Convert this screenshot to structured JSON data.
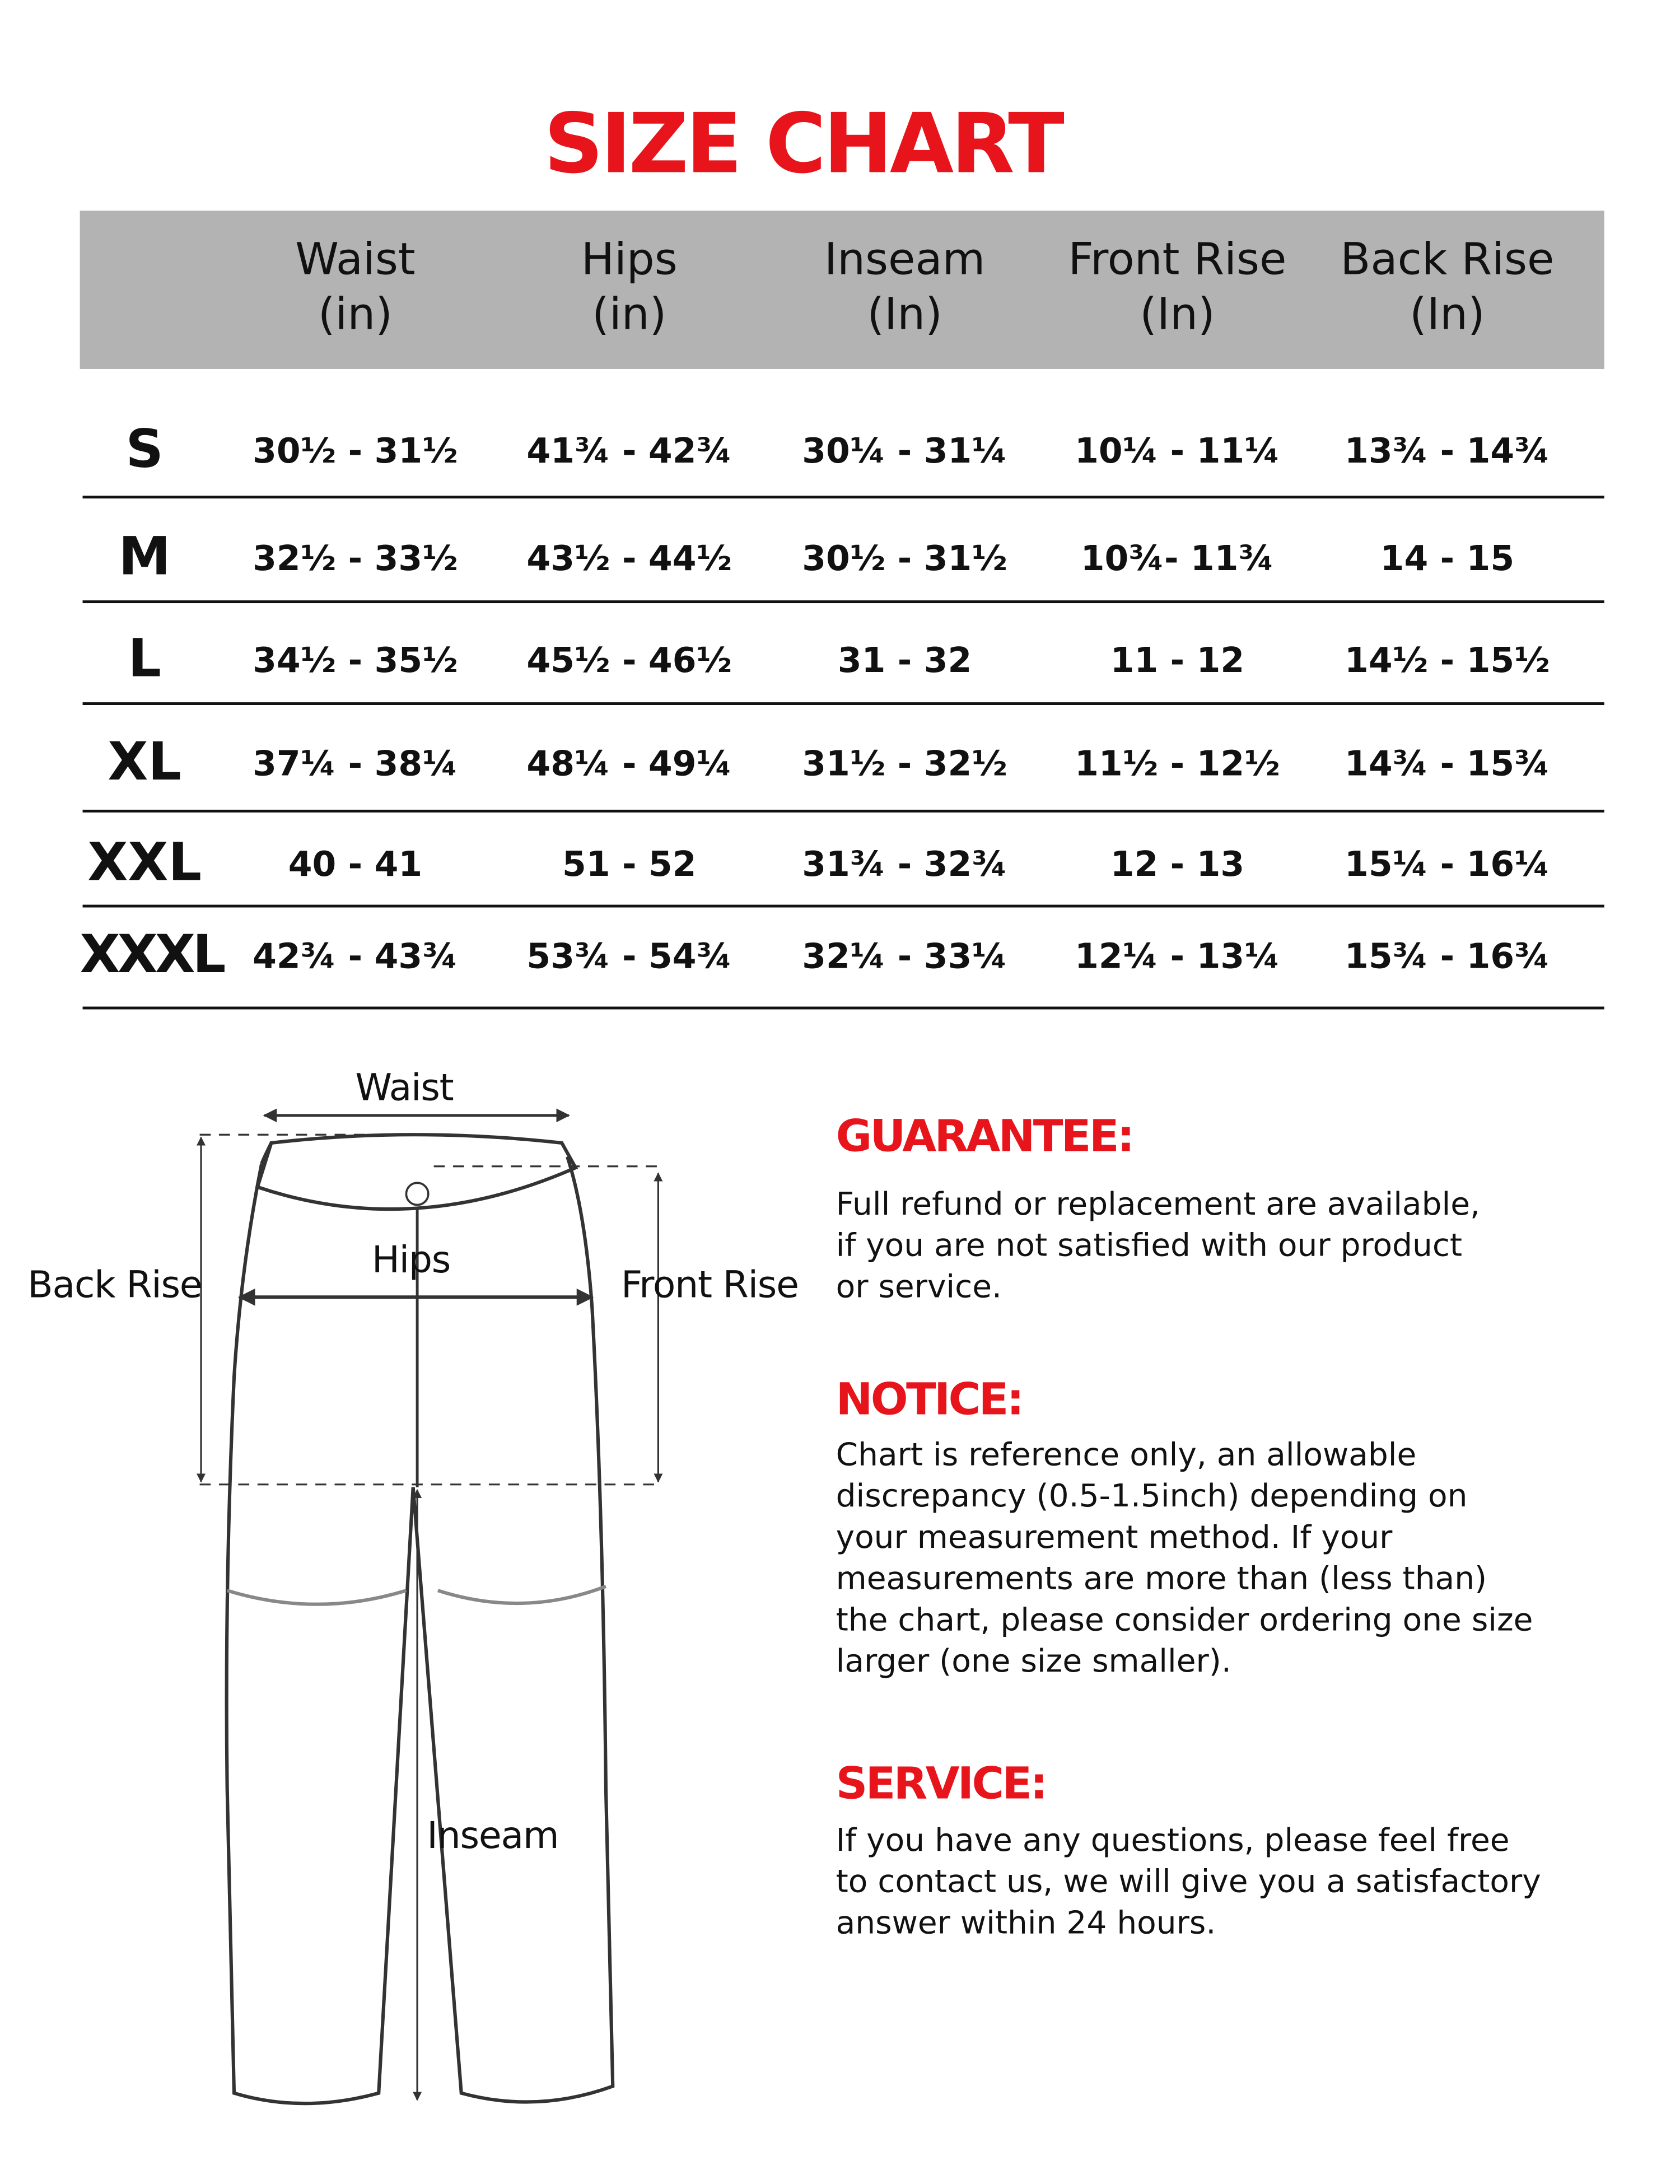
{
  "title": "SIZE CHART",
  "colors": {
    "accent": "#e8141b",
    "header_bg": "#b3b3b3"
  },
  "table": {
    "headers": [
      [
        "Waist",
        "(in)"
      ],
      [
        "Hips",
        "(in)"
      ],
      [
        "Inseam",
        "(In)"
      ],
      [
        "Front Rise",
        "(In)"
      ],
      [
        "Back Rise",
        "(In)"
      ]
    ],
    "rows": [
      {
        "size": "S",
        "values": [
          "30½ - 31½",
          "41¾ - 42¾",
          "30¼ - 31¼",
          "10¼ - 11¼",
          "13¾ - 14¾"
        ]
      },
      {
        "size": "M",
        "values": [
          "32½ - 33½",
          "43½ - 44½",
          "30½ - 31½",
          "10¾- 11¾",
          "14 - 15"
        ]
      },
      {
        "size": "L",
        "values": [
          "34½ - 35½",
          "45½ - 46½",
          "31 - 32",
          "11 - 12",
          "14½ - 15½"
        ]
      },
      {
        "size": "XL",
        "values": [
          "37¼ - 38¼",
          "48¼ - 49¼",
          "31½ - 32½",
          "11½ - 12½",
          "14¾ - 15¾"
        ]
      },
      {
        "size": "XXL",
        "values": [
          "40 - 41",
          "51 - 52",
          "31¾ - 32¾",
          "12 - 13",
          "15¼ - 16¼"
        ]
      },
      {
        "size": "XXXL",
        "values": [
          "42¾ - 43¾",
          "53¾ - 54¾",
          "32¼ - 33¼",
          "12¼ - 13¼",
          "15¾ - 16¾"
        ]
      }
    ]
  },
  "diagram": {
    "waist": "Waist",
    "hips": "Hips",
    "back_rise": "Back Rise",
    "front_rise": "Front Rise",
    "inseam": "Inseam"
  },
  "sections": [
    {
      "heading": "GUARANTEE:",
      "lines": [
        "Full refund or replacement are available,",
        "if you are not satisfied with our product",
        "or service."
      ]
    },
    {
      "heading": "NOTICE:",
      "lines": [
        "Chart is reference only, an allowable",
        "discrepancy (0.5-1.5inch) depending on",
        "your measurement method. If your",
        "measurements are more than (less than)",
        "the chart, please consider ordering one size",
        "larger (one size smaller)."
      ]
    },
    {
      "heading": "SERVICE:",
      "lines": [
        "If you have any questions, please feel free",
        "to contact us, we will give you a satisfactory",
        "answer within 24 hours."
      ]
    }
  ]
}
